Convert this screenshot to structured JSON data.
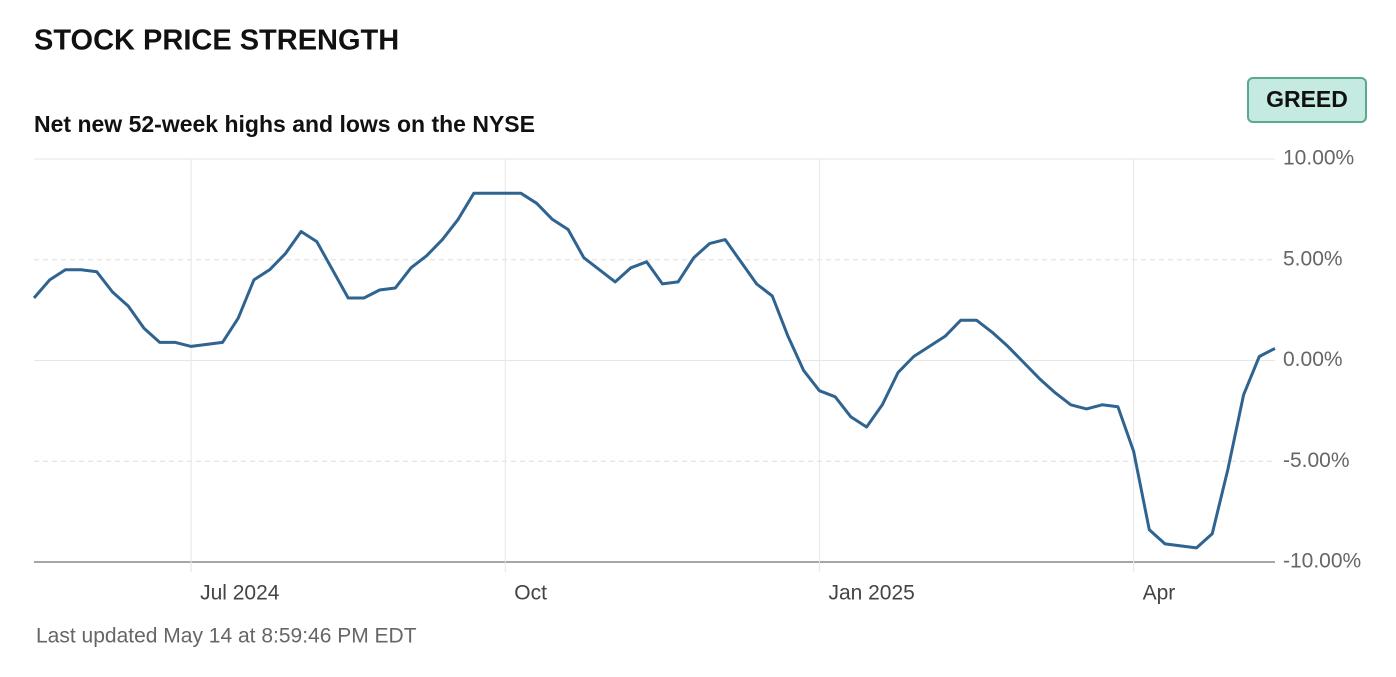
{
  "chart_data": {
    "type": "line",
    "title": "STOCK PRICE STRENGTH",
    "subtitle": "Net new 52-week highs and lows on the NYSE",
    "badge": "GREED",
    "footnote": "Last updated May 14 at 8:59:46 PM EDT",
    "categories": [
      null,
      null,
      null,
      null,
      null,
      null,
      null,
      null,
      null,
      null,
      "Jul 2024",
      null,
      null,
      null,
      null,
      null,
      null,
      null,
      null,
      null,
      null,
      null,
      null,
      null,
      null,
      null,
      null,
      null,
      null,
      null,
      "Oct",
      null,
      null,
      null,
      null,
      null,
      null,
      null,
      null,
      null,
      null,
      null,
      null,
      null,
      null,
      null,
      null,
      null,
      null,
      null,
      "Jan 2025",
      null,
      null,
      null,
      null,
      null,
      null,
      null,
      null,
      null,
      null,
      null,
      null,
      null,
      null,
      null,
      null,
      null,
      null,
      null,
      "Apr",
      null,
      null,
      null,
      null,
      null,
      null,
      null,
      null,
      null
    ],
    "values": [
      3.1,
      4.0,
      4.5,
      4.5,
      4.4,
      3.4,
      2.7,
      1.6,
      0.9,
      0.9,
      0.7,
      0.8,
      0.9,
      2.1,
      4.0,
      4.5,
      5.3,
      6.4,
      5.9,
      4.5,
      3.1,
      3.1,
      3.5,
      3.6,
      4.6,
      5.2,
      6.0,
      7.0,
      8.3,
      8.3,
      8.3,
      8.3,
      7.8,
      7.0,
      6.5,
      5.1,
      4.5,
      3.9,
      4.6,
      4.9,
      3.8,
      3.9,
      5.1,
      5.8,
      6.0,
      4.9,
      3.8,
      3.2,
      1.2,
      -0.5,
      -1.5,
      -1.8,
      -2.8,
      -3.3,
      -2.2,
      -0.6,
      0.2,
      0.7,
      1.2,
      2.0,
      2.0,
      1.4,
      0.7,
      -0.1,
      -0.9,
      -1.6,
      -2.2,
      -2.4,
      -2.2,
      -2.3,
      -4.5,
      -8.4,
      -9.1,
      -9.2,
      -9.3,
      -8.6,
      -5.4,
      -1.7,
      0.2,
      0.6
    ],
    "color": "#2f6390",
    "ylim": [
      -10,
      10
    ],
    "yticks": [
      {
        "value": -10,
        "label": "-10.00%"
      },
      {
        "value": -5,
        "label": "-5.00%"
      },
      {
        "value": 0,
        "label": "0.00%"
      },
      {
        "value": 5,
        "label": "5.00%"
      },
      {
        "value": 10,
        "label": "10.00%"
      }
    ],
    "grid": true
  }
}
